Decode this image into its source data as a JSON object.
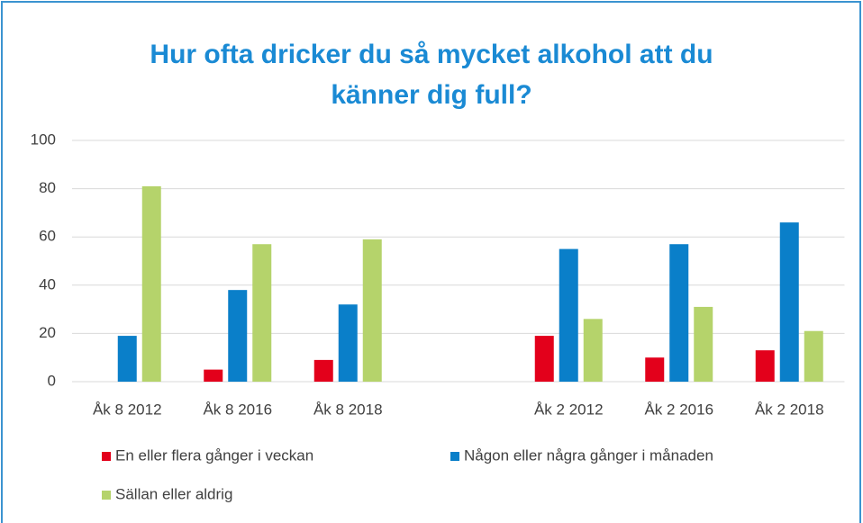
{
  "chart_data": {
    "type": "bar",
    "title": "Hur ofta dricker du så mycket alkohol att du känner dig full?",
    "categories": [
      "Åk 8 2012",
      "Åk 8 2016",
      "Åk 8 2018",
      null,
      "Åk 2 2012",
      "Åk 2 2016",
      "Åk 2 2018"
    ],
    "series": [
      {
        "name": "En eller flera gånger i veckan",
        "color": "#e3001b",
        "values": [
          0,
          5,
          9,
          null,
          19,
          10,
          13
        ]
      },
      {
        "name": "Någon eller några gånger i månaden",
        "color": "#0a7fc9",
        "values": [
          19,
          38,
          32,
          null,
          55,
          57,
          66
        ]
      },
      {
        "name": "Sällan eller aldrig",
        "color": "#b5d36b",
        "values": [
          81,
          57,
          59,
          null,
          26,
          31,
          21
        ]
      }
    ],
    "ylim": [
      0,
      100
    ],
    "yticks": [
      0,
      20,
      40,
      60,
      80,
      100
    ],
    "grid": true,
    "legend": "bottom"
  }
}
